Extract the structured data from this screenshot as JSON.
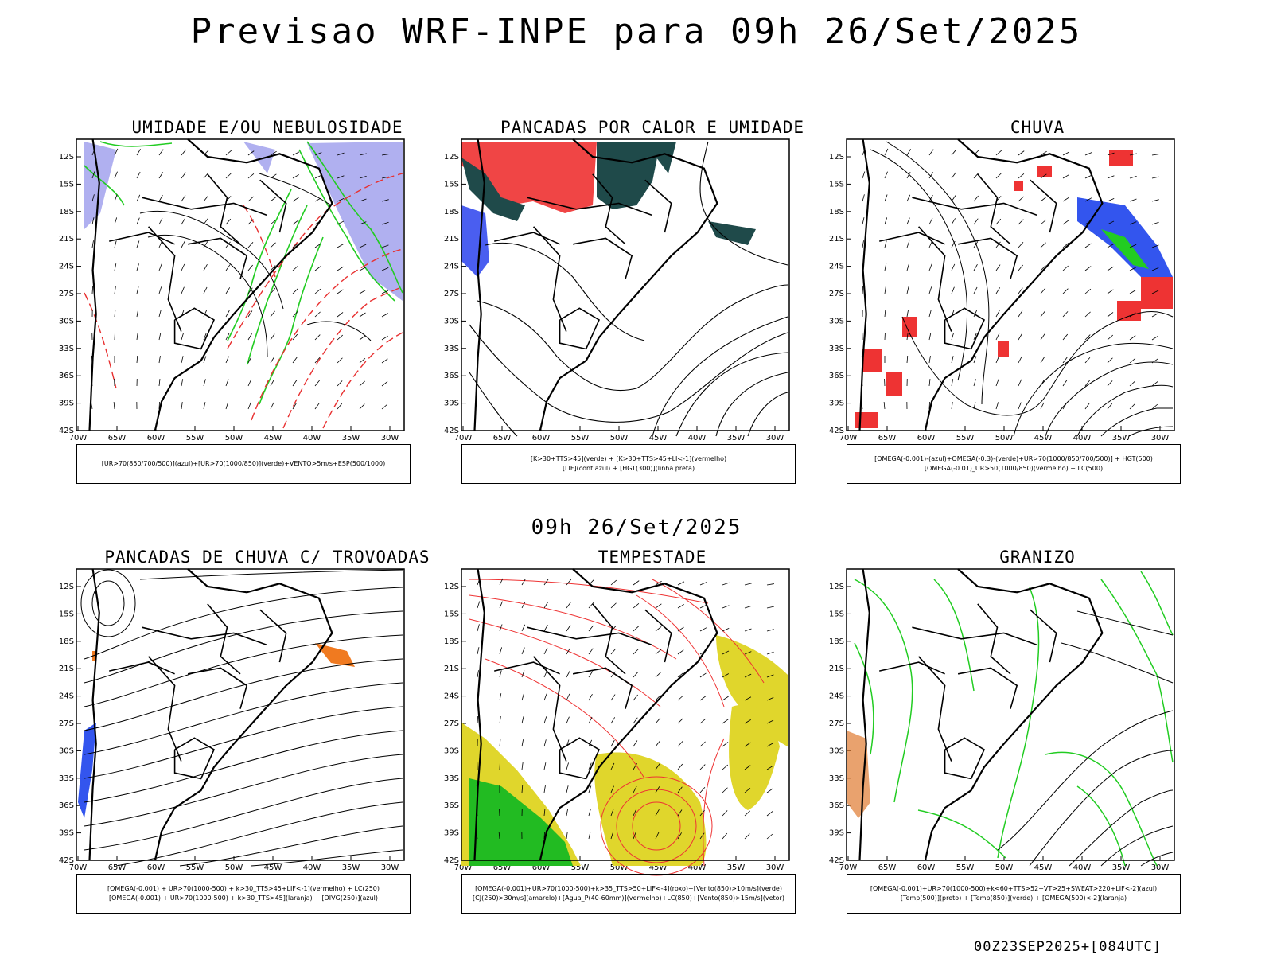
{
  "header": {
    "title": "Previsao WRF-INPE  para 09h 26/Set/2025"
  },
  "middle": {
    "date_label": "09h 26/Set/2025"
  },
  "footer": {
    "stamp": "00Z23SEP2025+[084UTC]"
  },
  "axes": {
    "lat_labels": [
      "12S",
      "15S",
      "18S",
      "21S",
      "24S",
      "27S",
      "30S",
      "33S",
      "36S",
      "39S",
      "42S"
    ],
    "lon_labels": [
      "70W",
      "65W",
      "60W",
      "55W",
      "50W",
      "45W",
      "40W",
      "35W",
      "30W"
    ]
  },
  "panels": [
    {
      "title": "UMIDADE E/OU NEBULOSIDADE",
      "legend": [
        "[UR>70(850/700/500)](azul)+[UR>70(1000/850)](verde)+VENTO>5m/s+ESP(500/1000)"
      ]
    },
    {
      "title": "PANCADAS POR CALOR E UMIDADE",
      "legend": [
        "[K>30+TTS>45](verde)  +  [K>30+TTS>45+LI<-1](vermelho)",
        "[LIF](cont.azul)  +  [HGT(300)](linha preta)"
      ]
    },
    {
      "title": "CHUVA",
      "legend": [
        "[OMEGA(-0.001)-(azul)+OMEGA(-0.3)-(verde)+UR>70(1000/850/700/500)]  +  HGT(500)",
        "[OMEGA(-0.01)_UR>50(1000/850)(vermelho) + LC(500)"
      ]
    },
    {
      "title": "PANCADAS DE CHUVA C/ TROVOADAS",
      "legend": [
        "[OMEGA(-0.001) + UR>70(1000-500) + k>30_TTS>45+LIF<-1](vermelho) + LC(250)",
        "[OMEGA(-0.001) + UR>70(1000-500) + k>30_TTS>45](laranja) + [DIVG(250)](azul)"
      ]
    },
    {
      "title": "TEMPESTADE",
      "legend": [
        "[OMEGA(-0.001)+UR>70(1000-500)+k>35_TTS>50+LIF<-4](roxo)+[Vento(850)>10m/s](verde)",
        "[CJ(250)>30m/s](amarelo)+[Agua_P(40-60mm)](vermelho)+LC(850)+[Vento(850)>15m/s](vetor)"
      ]
    },
    {
      "title": "GRANIZO",
      "legend": [
        "[OMEGA(-0.001)+UR>70(1000-500)+k<60+TTS>52+VT>25+SWEAT>220+LIF<-2](azul)",
        "[Temp(500)](preto) + [Temp(850)](verde) + [OMEGA(500)<-2](laranja)"
      ]
    }
  ]
}
